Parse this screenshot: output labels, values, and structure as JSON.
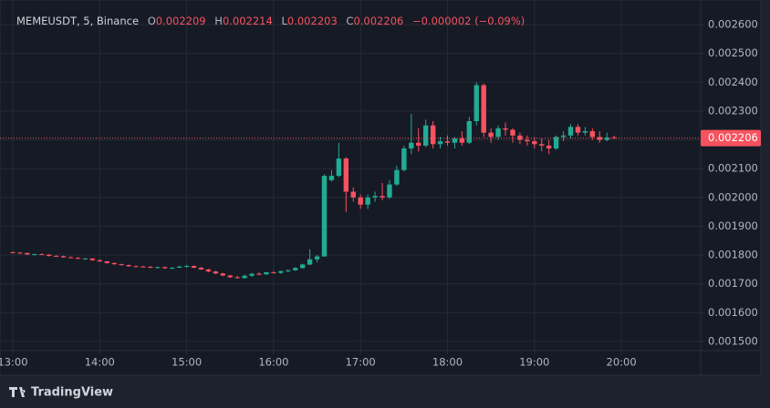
{
  "header": {
    "symbol": "MEMEUSDT, 5, Binance",
    "open_label": "O",
    "open": 0.002209,
    "high_label": "H",
    "high": 0.002214,
    "low_label": "L",
    "low": 0.002203,
    "close_label": "C",
    "close": 0.002206,
    "change": "−0.000002 (−0.09%)"
  },
  "chart_data": {
    "type": "candlestick",
    "x": [
      "13:00",
      "13:05",
      "13:10",
      "13:15",
      "13:20",
      "13:25",
      "13:30",
      "13:35",
      "13:40",
      "13:45",
      "13:50",
      "13:55",
      "14:00",
      "14:05",
      "14:10",
      "14:15",
      "14:20",
      "14:25",
      "14:30",
      "14:35",
      "14:40",
      "14:45",
      "14:50",
      "14:55",
      "15:00",
      "15:05",
      "15:10",
      "15:15",
      "15:20",
      "15:25",
      "15:30",
      "15:35",
      "15:40",
      "15:45",
      "15:50",
      "15:55",
      "16:00",
      "16:05",
      "16:10",
      "16:15",
      "16:20",
      "16:25",
      "16:30",
      "16:35",
      "16:40",
      "16:45",
      "16:50",
      "16:55",
      "17:00",
      "17:05",
      "17:10",
      "17:15",
      "17:20",
      "17:25",
      "17:30",
      "17:35",
      "17:40",
      "17:45",
      "17:50",
      "17:55",
      "18:00",
      "18:05",
      "18:10",
      "18:15",
      "18:20",
      "18:25",
      "18:30",
      "18:35",
      "18:40",
      "18:45",
      "18:50",
      "18:55",
      "19:00",
      "19:05",
      "19:10",
      "19:15",
      "19:20",
      "19:25",
      "19:30",
      "19:35",
      "19:40",
      "19:45",
      "19:50",
      "19:55"
    ],
    "open": [
      0.00181,
      0.001808,
      0.001807,
      0.001802,
      0.001803,
      0.001801,
      0.001797,
      0.001796,
      0.001792,
      0.00179,
      0.001787,
      0.001788,
      0.001782,
      0.001778,
      0.001772,
      0.001768,
      0.001765,
      0.001761,
      0.00176,
      0.001759,
      0.001756,
      0.001758,
      0.001754,
      0.001756,
      0.00176,
      0.001762,
      0.001756,
      0.00175,
      0.001743,
      0.001736,
      0.001729,
      0.001723,
      0.00172,
      0.001728,
      0.001735,
      0.001733,
      0.00174,
      0.001738,
      0.001744,
      0.001747,
      0.001755,
      0.001767,
      0.001785,
      0.001795,
      0.00206,
      0.002075,
      0.002135,
      0.00202,
      0.002,
      0.001975,
      0.002,
      0.002005,
      0.002,
      0.002045,
      0.002095,
      0.00217,
      0.00219,
      0.00218,
      0.00225,
      0.002185,
      0.002195,
      0.00219,
      0.002205,
      0.00219,
      0.002265,
      0.00239,
      0.002225,
      0.00221,
      0.00224,
      0.002235,
      0.002215,
      0.0022,
      0.002195,
      0.002185,
      0.00218,
      0.00217,
      0.00221,
      0.002215,
      0.002245,
      0.002225,
      0.00223,
      0.00221,
      0.0022,
      0.002209
    ],
    "high": [
      0.001812,
      0.001811,
      0.001808,
      0.001805,
      0.001806,
      0.001803,
      0.0018,
      0.001798,
      0.001795,
      0.001793,
      0.00179,
      0.001789,
      0.001784,
      0.00178,
      0.001775,
      0.00177,
      0.001767,
      0.001764,
      0.001763,
      0.001762,
      0.00176,
      0.00176,
      0.001758,
      0.001762,
      0.001766,
      0.001764,
      0.001758,
      0.001752,
      0.001745,
      0.001738,
      0.001731,
      0.001728,
      0.001732,
      0.001738,
      0.00174,
      0.001742,
      0.001745,
      0.001746,
      0.00175,
      0.001758,
      0.00177,
      0.00182,
      0.0018,
      0.00208,
      0.002095,
      0.00219,
      0.00214,
      0.002035,
      0.00201,
      0.00201,
      0.00202,
      0.00205,
      0.00206,
      0.00211,
      0.00218,
      0.00229,
      0.00224,
      0.00227,
      0.002265,
      0.00221,
      0.002215,
      0.00221,
      0.00223,
      0.00228,
      0.0024,
      0.002395,
      0.00224,
      0.00225,
      0.00226,
      0.00224,
      0.002225,
      0.002215,
      0.00221,
      0.002205,
      0.0022,
      0.002215,
      0.00223,
      0.002255,
      0.002255,
      0.002245,
      0.00224,
      0.00223,
      0.002225,
      0.002214
    ],
    "low": [
      0.001806,
      0.001805,
      0.0018,
      0.001799,
      0.0018,
      0.001795,
      0.001795,
      0.00179,
      0.001789,
      0.001786,
      0.001785,
      0.00178,
      0.001776,
      0.00177,
      0.001766,
      0.001763,
      0.001759,
      0.001758,
      0.001757,
      0.001754,
      0.001753,
      0.001752,
      0.001751,
      0.001755,
      0.001756,
      0.001754,
      0.001748,
      0.00174,
      0.001733,
      0.001726,
      0.00172,
      0.001718,
      0.001718,
      0.001724,
      0.00173,
      0.001731,
      0.001736,
      0.001735,
      0.00174,
      0.001745,
      0.001752,
      0.001765,
      0.001775,
      0.001795,
      0.002055,
      0.00207,
      0.00195,
      0.001985,
      0.00196,
      0.00196,
      0.001985,
      0.00199,
      0.001995,
      0.00204,
      0.00209,
      0.00215,
      0.00216,
      0.002175,
      0.00217,
      0.00217,
      0.00218,
      0.00217,
      0.00218,
      0.002185,
      0.00225,
      0.00221,
      0.00219,
      0.0022,
      0.002215,
      0.00219,
      0.002185,
      0.00218,
      0.00217,
      0.00216,
      0.00215,
      0.002165,
      0.002195,
      0.002205,
      0.002215,
      0.002215,
      0.0022,
      0.00219,
      0.002195,
      0.002203
    ],
    "close": [
      0.001808,
      0.001807,
      0.001802,
      0.001803,
      0.001801,
      0.001797,
      0.001796,
      0.001792,
      0.00179,
      0.001787,
      0.001788,
      0.001782,
      0.001778,
      0.001772,
      0.001768,
      0.001765,
      0.001761,
      0.00176,
      0.001759,
      0.001756,
      0.001758,
      0.001754,
      0.001756,
      0.00176,
      0.001762,
      0.001756,
      0.00175,
      0.001743,
      0.001736,
      0.001729,
      0.001723,
      0.00172,
      0.001728,
      0.001735,
      0.001733,
      0.00174,
      0.001738,
      0.001744,
      0.001747,
      0.001755,
      0.001767,
      0.001785,
      0.001795,
      0.002075,
      0.002075,
      0.002135,
      0.00202,
      0.002,
      0.001975,
      0.002,
      0.002005,
      0.002,
      0.002045,
      0.002095,
      0.00217,
      0.00219,
      0.00218,
      0.00225,
      0.002185,
      0.002195,
      0.00219,
      0.002205,
      0.00219,
      0.002265,
      0.00239,
      0.002225,
      0.00221,
      0.00224,
      0.002235,
      0.002215,
      0.0022,
      0.002195,
      0.002185,
      0.00218,
      0.00217,
      0.00221,
      0.002215,
      0.002245,
      0.002225,
      0.00223,
      0.00221,
      0.0022,
      0.002208,
      0.002206
    ],
    "up_color": "#22ab94",
    "down_color": "#f7525f",
    "last_price": 0.002206,
    "ylim": [
      0.001468,
      0.002654
    ],
    "yticks": [
      {
        "value": 0.0015,
        "label": "0.001500"
      },
      {
        "value": 0.0016,
        "label": "0.001600"
      },
      {
        "value": 0.0017,
        "label": "0.001700"
      },
      {
        "value": 0.0018,
        "label": "0.001800"
      },
      {
        "value": 0.0019,
        "label": "0.001900"
      },
      {
        "value": 0.002,
        "label": "0.002000"
      },
      {
        "value": 0.0021,
        "label": "0.002100"
      },
      {
        "value": 0.0022,
        "label": "0.002200"
      },
      {
        "value": 0.0023,
        "label": "0.002300"
      },
      {
        "value": 0.0024,
        "label": "0.002400"
      },
      {
        "value": 0.0025,
        "label": "0.002500"
      },
      {
        "value": 0.0026,
        "label": "0.002600"
      }
    ],
    "xticks": [
      "13:00",
      "14:00",
      "15:00",
      "16:00",
      "17:00",
      "18:00",
      "19:00",
      "20:00"
    ],
    "grid": true
  },
  "watermark": "TradingView"
}
